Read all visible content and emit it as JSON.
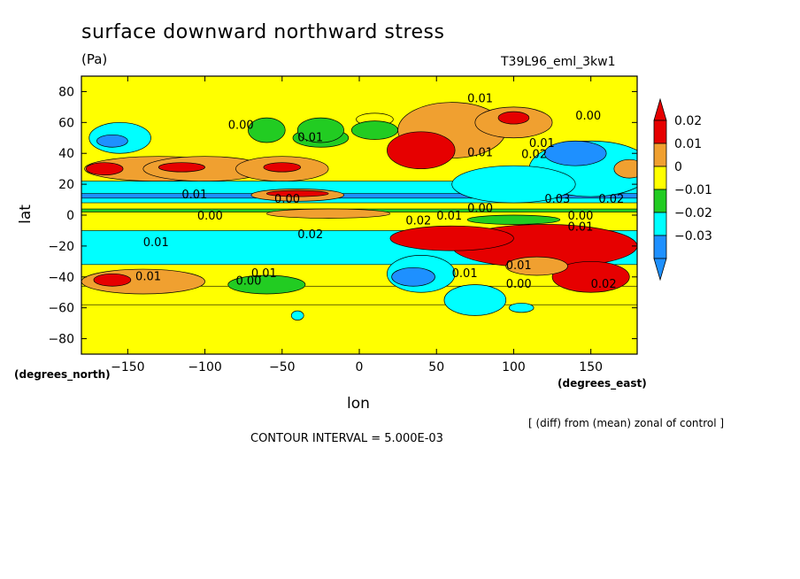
{
  "chart_data": {
    "type": "heatmap",
    "title": "surface downward northward stress",
    "units": "(Pa)",
    "run_id": "T39L96_eml_3kw1",
    "xlabel": "lon",
    "ylabel": "lat",
    "x_unit": "(degrees_east)",
    "y_unit": "(degrees_north)",
    "note": "[ (diff) from (mean) zonal of control ]",
    "contour_interval": "CONTOUR INTERVAL = 5.000E-03",
    "xlim": [
      -180,
      180
    ],
    "ylim": [
      -90,
      90
    ],
    "x_ticks": [
      -150,
      -100,
      -50,
      0,
      50,
      100,
      150
    ],
    "y_ticks": [
      80,
      60,
      40,
      20,
      0,
      -20,
      -40,
      -60,
      -80
    ],
    "colorbar": {
      "levels": [
        0.02,
        0.01,
        0,
        -0.01,
        -0.02,
        -0.03
      ],
      "labels": [
        "0.02",
        "0.01",
        "0",
        "−0.01",
        "−0.02",
        "−0.03"
      ],
      "colors": [
        "#e60000",
        "#f0a030",
        "#ffff00",
        "#22cc22",
        "#00ffff",
        "#1e90ff"
      ]
    },
    "base_color": "#ffff00",
    "bands": [
      {
        "lat_top": 22,
        "lat_bottom": 8,
        "color": "#00ffff"
      },
      {
        "lat_top": 14,
        "lat_bottom": 11,
        "color": "#1e90ff"
      },
      {
        "lat_top": 4,
        "lat_bottom": 2,
        "color": "#22cc22"
      },
      {
        "lat_top": -10,
        "lat_bottom": -32,
        "color": "#00ffff"
      },
      {
        "lat_top": -46,
        "lat_bottom": -58,
        "color": "#ffff00"
      }
    ],
    "features": [
      {
        "lon": -130,
        "lat": 30,
        "dlon": 48,
        "dlat": 8,
        "color": "#f0a030"
      },
      {
        "lon": -100,
        "lat": 30,
        "dlon": 40,
        "dlat": 8,
        "color": "#f0a030"
      },
      {
        "lon": -50,
        "lat": 30,
        "dlon": 30,
        "dlat": 8,
        "color": "#f0a030"
      },
      {
        "lon": -115,
        "lat": 31,
        "dlon": 15,
        "dlat": 3,
        "color": "#e60000"
      },
      {
        "lon": -50,
        "lat": 31,
        "dlon": 12,
        "dlat": 3,
        "color": "#e60000"
      },
      {
        "lon": -165,
        "lat": 30,
        "dlon": 12,
        "dlat": 4,
        "color": "#e60000"
      },
      {
        "lon": -40,
        "lat": 13,
        "dlon": 30,
        "dlat": 4,
        "color": "#f0a030"
      },
      {
        "lon": -40,
        "lat": 14,
        "dlon": 20,
        "dlat": 2,
        "color": "#e60000"
      },
      {
        "lon": -155,
        "lat": 50,
        "dlon": 20,
        "dlat": 10,
        "color": "#00ffff"
      },
      {
        "lon": -160,
        "lat": 48,
        "dlon": 10,
        "dlat": 4,
        "color": "#1e90ff"
      },
      {
        "lon": -60,
        "lat": 55,
        "dlon": 12,
        "dlat": 8,
        "color": "#22cc22"
      },
      {
        "lon": -25,
        "lat": 50,
        "dlon": 18,
        "dlat": 6,
        "color": "#22cc22"
      },
      {
        "lon": 60,
        "lat": 55,
        "dlon": 35,
        "dlat": 18,
        "color": "#f0a030"
      },
      {
        "lon": 40,
        "lat": 42,
        "dlon": 22,
        "dlat": 12,
        "color": "#e60000"
      },
      {
        "lon": 100,
        "lat": 60,
        "dlon": 25,
        "dlat": 10,
        "color": "#f0a030"
      },
      {
        "lon": 100,
        "lat": 63,
        "dlon": 10,
        "dlat": 4,
        "color": "#e60000"
      },
      {
        "lon": 150,
        "lat": 30,
        "dlon": 40,
        "dlat": 18,
        "color": "#00ffff"
      },
      {
        "lon": 140,
        "lat": 40,
        "dlon": 20,
        "dlat": 8,
        "color": "#1e90ff"
      },
      {
        "lon": 100,
        "lat": 20,
        "dlon": 40,
        "dlat": 12,
        "color": "#00ffff"
      },
      {
        "lon": 175,
        "lat": 30,
        "dlon": 10,
        "dlat": 6,
        "color": "#f0a030"
      },
      {
        "lon": -20,
        "lat": 1,
        "dlon": 40,
        "dlat": 3,
        "color": "#f0a030"
      },
      {
        "lon": 120,
        "lat": -20,
        "dlon": 60,
        "dlat": 14,
        "color": "#e60000"
      },
      {
        "lon": 60,
        "lat": -15,
        "dlon": 40,
        "dlat": 8,
        "color": "#e60000"
      },
      {
        "lon": 150,
        "lat": -40,
        "dlon": 25,
        "dlat": 10,
        "color": "#e60000"
      },
      {
        "lon": 115,
        "lat": -33,
        "dlon": 20,
        "dlat": 6,
        "color": "#f0a030"
      },
      {
        "lon": 100,
        "lat": -3,
        "dlon": 30,
        "dlat": 3,
        "color": "#22cc22"
      },
      {
        "lon": 40,
        "lat": -38,
        "dlon": 22,
        "dlat": 12,
        "color": "#00ffff"
      },
      {
        "lon": 35,
        "lat": -40,
        "dlon": 14,
        "dlat": 6,
        "color": "#1e90ff"
      },
      {
        "lon": 75,
        "lat": -55,
        "dlon": 20,
        "dlat": 10,
        "color": "#00ffff"
      },
      {
        "lon": -140,
        "lat": -43,
        "dlon": 40,
        "dlat": 8,
        "color": "#f0a030"
      },
      {
        "lon": -160,
        "lat": -42,
        "dlon": 12,
        "dlat": 4,
        "color": "#e60000"
      },
      {
        "lon": -60,
        "lat": -45,
        "dlon": 25,
        "dlat": 6,
        "color": "#22cc22"
      },
      {
        "lon": -40,
        "lat": -65,
        "dlon": 4,
        "dlat": 3,
        "color": "#00ffff"
      },
      {
        "lon": 105,
        "lat": -60,
        "dlon": 8,
        "dlat": 3,
        "color": "#00ffff"
      },
      {
        "lon": -25,
        "lat": 55,
        "dlon": 15,
        "dlat": 8,
        "color": "#22cc22"
      },
      {
        "lon": 10,
        "lat": 62,
        "dlon": 12,
        "dlat": 4,
        "color": "#ffff00"
      },
      {
        "lon": 10,
        "lat": 55,
        "dlon": 15,
        "dlat": 6,
        "color": "#22cc22"
      }
    ],
    "contour_labels": [
      {
        "lon": 70,
        "lat": 73,
        "text": "0.01"
      },
      {
        "lon": -85,
        "lat": 56,
        "text": "0.00"
      },
      {
        "lon": -40,
        "lat": 48,
        "text": "0.01"
      },
      {
        "lon": 140,
        "lat": 62,
        "text": "0.00"
      },
      {
        "lon": 110,
        "lat": 44,
        "text": "0.01"
      },
      {
        "lon": 105,
        "lat": 37,
        "text": "0.02"
      },
      {
        "lon": 70,
        "lat": 38,
        "text": "0.01"
      },
      {
        "lon": -115,
        "lat": 11,
        "text": "0.01"
      },
      {
        "lon": -55,
        "lat": 8,
        "text": "0.00"
      },
      {
        "lon": -105,
        "lat": -3,
        "text": "0.00"
      },
      {
        "lon": 120,
        "lat": 8,
        "text": "0.03"
      },
      {
        "lon": 155,
        "lat": 8,
        "text": "0.02"
      },
      {
        "lon": 70,
        "lat": 2,
        "text": "0.00"
      },
      {
        "lon": 50,
        "lat": -3,
        "text": "0.01"
      },
      {
        "lon": 30,
        "lat": -6,
        "text": "0.02"
      },
      {
        "lon": 135,
        "lat": -3,
        "text": "0.00"
      },
      {
        "lon": 135,
        "lat": -10,
        "text": "0.01"
      },
      {
        "lon": -40,
        "lat": -15,
        "text": "0.02"
      },
      {
        "lon": -140,
        "lat": -20,
        "text": "0.01"
      },
      {
        "lon": -145,
        "lat": -42,
        "text": "0.01"
      },
      {
        "lon": -70,
        "lat": -40,
        "text": "0.01"
      },
      {
        "lon": -80,
        "lat": -45,
        "text": "0.00"
      },
      {
        "lon": 95,
        "lat": -35,
        "text": "0.01"
      },
      {
        "lon": 60,
        "lat": -40,
        "text": "0.01"
      },
      {
        "lon": 95,
        "lat": -47,
        "text": "0.00"
      },
      {
        "lon": 150,
        "lat": -47,
        "text": "0.02"
      }
    ]
  }
}
